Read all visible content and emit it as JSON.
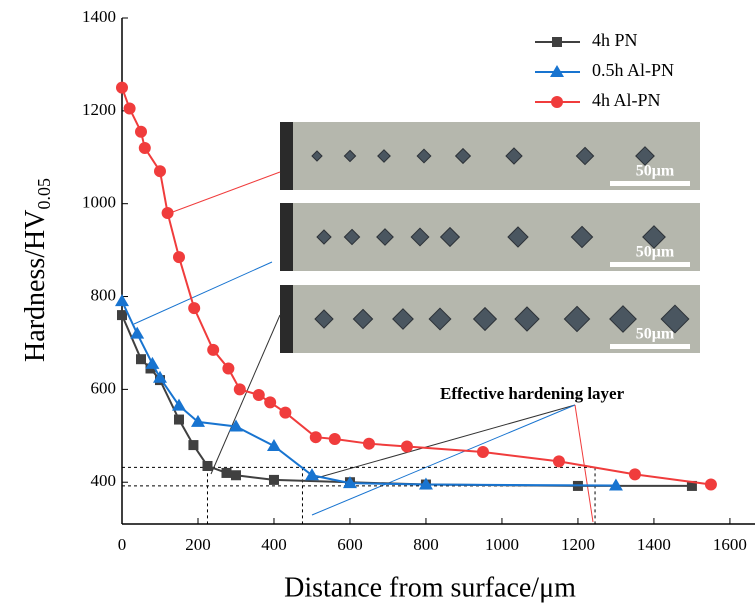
{
  "chart_data": {
    "type": "line",
    "xlabel": "Distance from surface/μm",
    "ylabel": "Hardness/HV",
    "ylabel_subscript": "0.05",
    "xlim": [
      0,
      1666
    ],
    "ylim": [
      310,
      1400
    ],
    "xticks": [
      0,
      200,
      400,
      600,
      800,
      1000,
      1200,
      1400,
      1600
    ],
    "yticks": [
      400,
      600,
      800,
      1000,
      1200,
      1400
    ],
    "legend_position": "upper right",
    "series": [
      {
        "name": "4h PN",
        "color": "#404040",
        "marker": "square",
        "x": [
          0,
          50,
          75,
          100,
          150,
          188,
          225,
          275,
          300,
          400,
          600,
          800,
          1200,
          1500
        ],
        "values": [
          760,
          665,
          645,
          620,
          535,
          480,
          435,
          420,
          415,
          405,
          400,
          395,
          392,
          392
        ]
      },
      {
        "name": "0.5h Al-PN",
        "color": "#1874d0",
        "marker": "triangle",
        "x": [
          0,
          40,
          80,
          100,
          150,
          200,
          300,
          400,
          500,
          600,
          800,
          1300
        ],
        "values": [
          790,
          720,
          655,
          625,
          565,
          530,
          520,
          478,
          415,
          398,
          395,
          393
        ]
      },
      {
        "name": "4h Al-PN",
        "color": "#f03c3c",
        "marker": "circle",
        "x": [
          0,
          20,
          50,
          60,
          100,
          120,
          150,
          190,
          240,
          280,
          310,
          360,
          390,
          430,
          510,
          560,
          650,
          750,
          950,
          1150,
          1350,
          1550
        ],
        "values": [
          1250,
          1205,
          1155,
          1120,
          1070,
          980,
          885,
          775,
          685,
          645,
          600,
          588,
          572,
          550,
          497,
          493,
          483,
          477,
          465,
          445,
          417,
          395
        ]
      }
    ],
    "reference_hlines": [
      432,
      392
    ],
    "reference_vlines": [
      225,
      475,
      1245
    ],
    "annotation": "Effective hardening layer",
    "scale_bar_labels": [
      "50μm",
      "50μm",
      "50μm"
    ]
  }
}
